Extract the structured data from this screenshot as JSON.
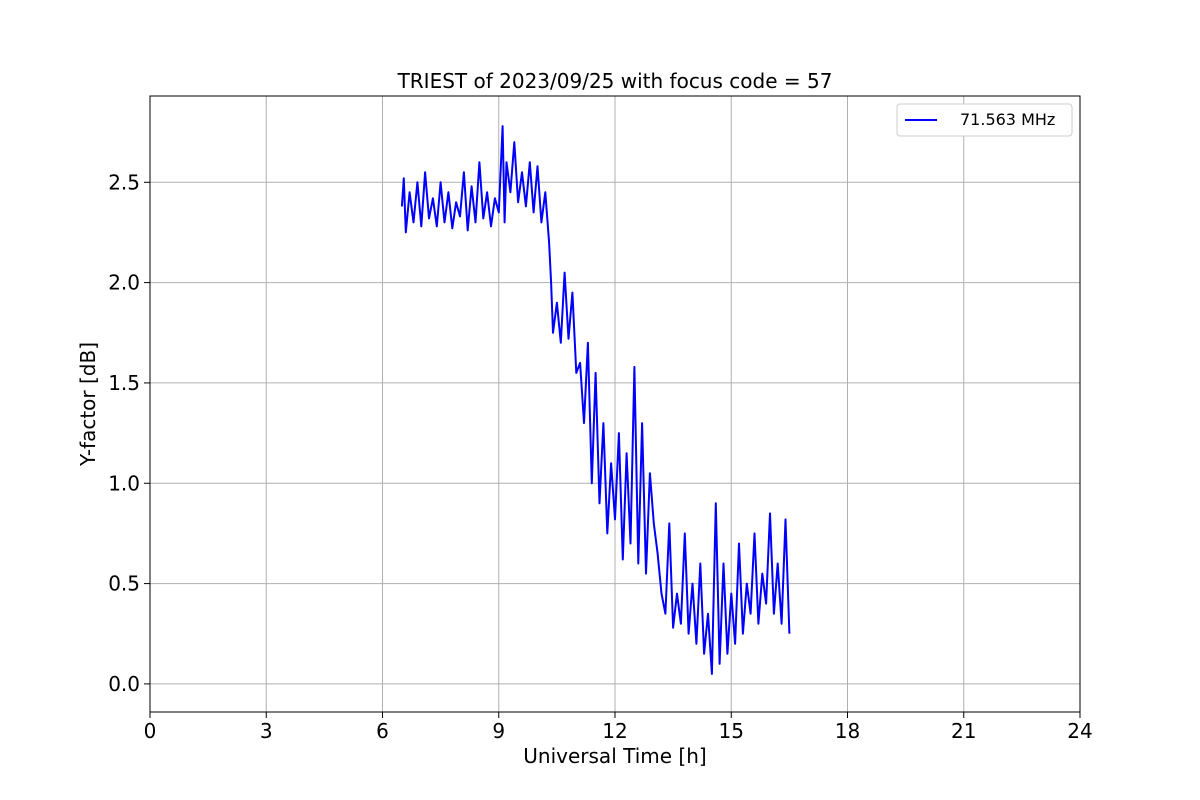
{
  "chart_data": {
    "type": "line",
    "title": "TRIEST of 2023/09/25 with focus code = 57",
    "xlabel": "Universal Time [h]",
    "ylabel": "Y-factor [dB]",
    "xlim": [
      0,
      24
    ],
    "ylim": [
      -0.14,
      2.93
    ],
    "xticks": [
      0,
      3,
      6,
      9,
      12,
      15,
      18,
      21,
      24
    ],
    "yticks": [
      0.0,
      0.5,
      1.0,
      1.5,
      2.0,
      2.5
    ],
    "xtick_labels": [
      "0",
      "3",
      "6",
      "9",
      "12",
      "15",
      "18",
      "21",
      "24"
    ],
    "ytick_labels": [
      "0.0",
      "0.5",
      "1.0",
      "1.5",
      "2.0",
      "2.5"
    ],
    "grid": true,
    "legend_position": "top-right",
    "series": [
      {
        "name": "71.563 MHz",
        "color": "#0000ff",
        "x": [
          6.5,
          6.55,
          6.6,
          6.7,
          6.8,
          6.9,
          7.0,
          7.1,
          7.2,
          7.3,
          7.4,
          7.5,
          7.6,
          7.7,
          7.8,
          7.9,
          8.0,
          8.1,
          8.2,
          8.3,
          8.4,
          8.5,
          8.6,
          8.7,
          8.8,
          8.9,
          9.0,
          9.1,
          9.15,
          9.2,
          9.3,
          9.4,
          9.5,
          9.6,
          9.7,
          9.8,
          9.9,
          10.0,
          10.1,
          10.2,
          10.3,
          10.35,
          10.4,
          10.5,
          10.6,
          10.7,
          10.8,
          10.9,
          11.0,
          11.1,
          11.2,
          11.3,
          11.4,
          11.5,
          11.6,
          11.7,
          11.8,
          11.9,
          12.0,
          12.1,
          12.2,
          12.3,
          12.4,
          12.5,
          12.6,
          12.7,
          12.8,
          12.9,
          13.0,
          13.1,
          13.2,
          13.3,
          13.4,
          13.5,
          13.6,
          13.7,
          13.8,
          13.9,
          14.0,
          14.1,
          14.2,
          14.3,
          14.4,
          14.5,
          14.6,
          14.7,
          14.8,
          14.9,
          15.0,
          15.1,
          15.2,
          15.3,
          15.4,
          15.5,
          15.6,
          15.7,
          15.8,
          15.9,
          16.0,
          16.1,
          16.2,
          16.3,
          16.4,
          16.5
        ],
        "y": [
          2.38,
          2.52,
          2.25,
          2.45,
          2.3,
          2.5,
          2.28,
          2.55,
          2.32,
          2.42,
          2.28,
          2.5,
          2.3,
          2.45,
          2.27,
          2.4,
          2.33,
          2.55,
          2.26,
          2.48,
          2.3,
          2.6,
          2.32,
          2.45,
          2.28,
          2.42,
          2.35,
          2.78,
          2.3,
          2.6,
          2.45,
          2.7,
          2.4,
          2.55,
          2.38,
          2.6,
          2.35,
          2.58,
          2.3,
          2.45,
          2.2,
          2.0,
          1.75,
          1.9,
          1.7,
          2.05,
          1.72,
          1.95,
          1.55,
          1.6,
          1.3,
          1.7,
          1.0,
          1.55,
          0.9,
          1.3,
          0.75,
          1.1,
          0.82,
          1.25,
          0.62,
          1.15,
          0.7,
          1.58,
          0.6,
          1.3,
          0.55,
          1.05,
          0.8,
          0.65,
          0.45,
          0.35,
          0.8,
          0.28,
          0.45,
          0.3,
          0.75,
          0.25,
          0.5,
          0.2,
          0.6,
          0.15,
          0.35,
          0.05,
          0.9,
          0.1,
          0.6,
          0.15,
          0.45,
          0.2,
          0.7,
          0.25,
          0.5,
          0.35,
          0.75,
          0.3,
          0.55,
          0.4,
          0.85,
          0.35,
          0.6,
          0.3,
          0.82,
          0.25
        ]
      }
    ]
  }
}
